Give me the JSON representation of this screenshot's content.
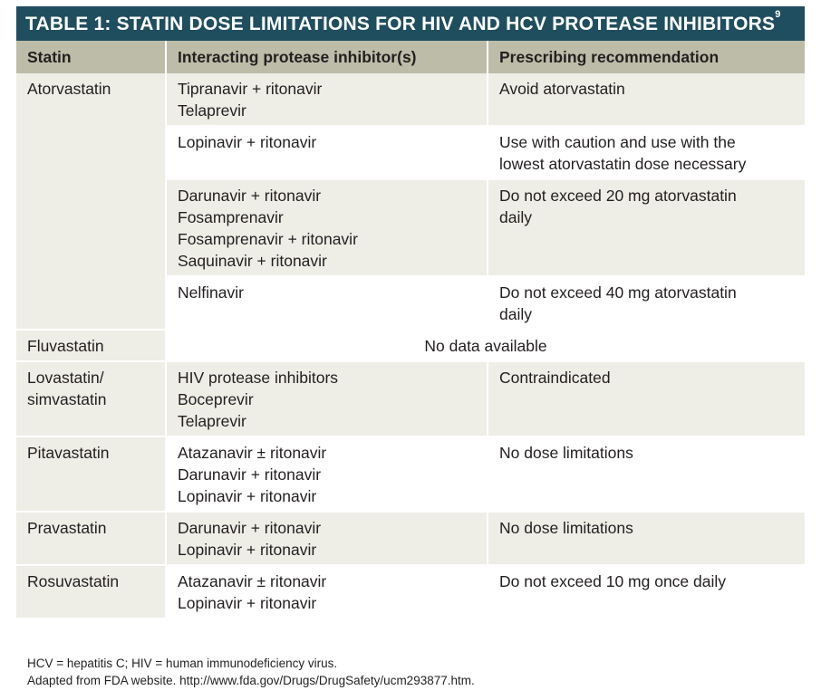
{
  "table": {
    "title": "TABLE 1: STATIN DOSE LIMITATIONS FOR HIV AND HCV  PROTEASE INHIBITORS",
    "title_superscript": "9",
    "headers": [
      "Statin",
      "Interacting protease inhibitor(s)",
      "Prescribing recommendation"
    ],
    "atorvastatin": {
      "statin": "Atorvastatin",
      "rows": [
        {
          "inhibitors": [
            "Tipranavir + ritonavir",
            "Telaprevir"
          ],
          "recommendation": [
            "Avoid atorvastatin"
          ]
        },
        {
          "inhibitors": [
            "Lopinavir + ritonavir"
          ],
          "recommendation": [
            "Use with caution and use with the",
            "lowest atorvastatin dose necessary"
          ]
        },
        {
          "inhibitors": [
            "Darunavir + ritonavir",
            "Fosamprenavir",
            "Fosamprenavir + ritonavir",
            "Saquinavir + ritonavir"
          ],
          "recommendation": [
            "Do not exceed 20 mg atorvastatin",
            "daily"
          ]
        },
        {
          "inhibitors": [
            "Nelfinavir"
          ],
          "recommendation": [
            "Do not exceed 40 mg atorvastatin",
            "daily"
          ]
        }
      ]
    },
    "fluvastatin": {
      "statin": "Fluvastatin",
      "note": "No data available"
    },
    "lovastatin": {
      "statin": [
        "Lovastatin/",
        "simvastatin"
      ],
      "inhibitors": [
        "HIV protease inhibitors",
        "Boceprevir",
        "Telaprevir"
      ],
      "recommendation": "Contraindicated"
    },
    "pitavastatin": {
      "statin": "Pitavastatin",
      "inhibitors": [
        "Atazanavir ± ritonavir",
        "Darunavir + ritonavir",
        "Lopinavir + ritonavir"
      ],
      "recommendation": "No dose limitations"
    },
    "pravastatin": {
      "statin": "Pravastatin",
      "inhibitors": [
        "Darunavir + ritonavir",
        "Lopinavir + ritonavir"
      ],
      "recommendation": "No dose limitations"
    },
    "rosuvastatin": {
      "statin": "Rosuvastatin",
      "inhibitors": [
        "Atazanavir ± ritonavir",
        "Lopinavir + ritonavir"
      ],
      "recommendation": "Do not exceed 10 mg once daily"
    }
  },
  "footer": {
    "abbreviations": "HCV = hepatitis C; HIV = human immunodeficiency virus.",
    "source": "Adapted from FDA website. http://www.fda.gov/Drugs/DrugSafety/ucm293877.htm."
  }
}
